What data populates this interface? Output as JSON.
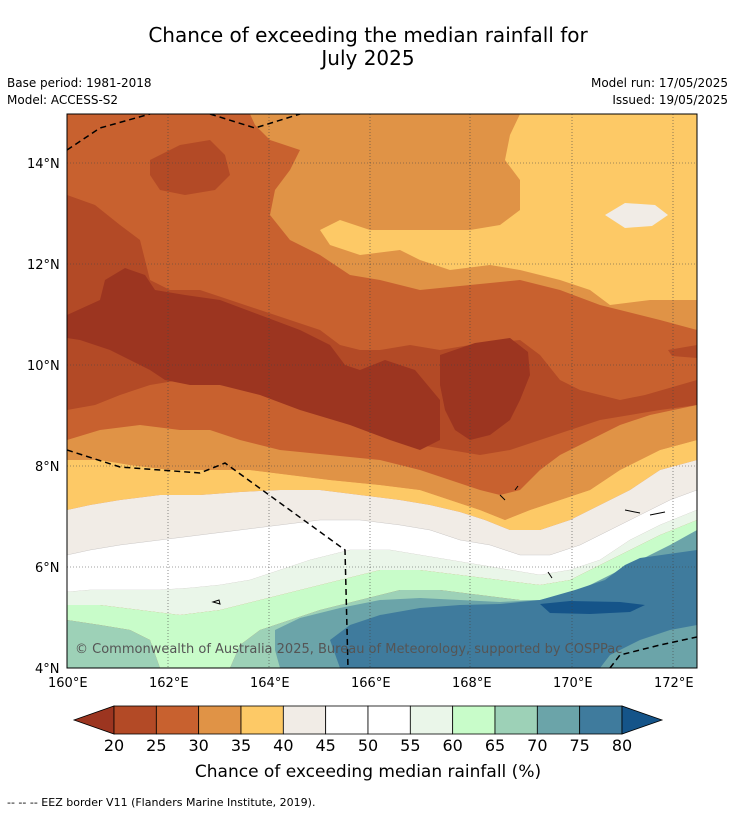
{
  "title_line1": "Chance of exceeding the median rainfall for",
  "title_line2": "July 2025",
  "base_period": "Base period: 1981-2018",
  "model": "Model: ACCESS-S2",
  "model_run": "Model run: 17/05/2025",
  "issued": "Issued: 19/05/2025",
  "map": {
    "lat_ticks": [
      "14°N",
      "12°N",
      "10°N",
      "8°N",
      "6°N",
      "4°N"
    ],
    "lon_ticks": [
      "160°E",
      "162°E",
      "164°E",
      "166°E",
      "168°E",
      "170°E",
      "172°E"
    ],
    "copyright": "© Commonwealth of Australia 2025, Bureau of Meteorology, supported by COSPPac",
    "region_extent": {
      "lon": [
        160,
        172.5
      ],
      "lat": [
        4,
        15
      ]
    }
  },
  "colorbar": {
    "labels": [
      "20",
      "25",
      "30",
      "35",
      "40",
      "45",
      "50",
      "55",
      "60",
      "65",
      "70",
      "75",
      "80"
    ],
    "colors": [
      "#9c3520",
      "#b34a26",
      "#c8612f",
      "#e09346",
      "#fdc966",
      "#f1ece6",
      "#ffffff",
      "#ffffff",
      "#eaf6e9",
      "#c8fcc9",
      "#9dd1b7",
      "#6ba4a9",
      "#3f7b9d",
      "#155489"
    ],
    "low_color": "#9c3520",
    "high_color": "#155489",
    "title": "Chance of exceeding median rainfall (%)"
  },
  "footnote": "--  --  -- EEZ border V11 (Flanders Marine Institute, 2019)."
}
